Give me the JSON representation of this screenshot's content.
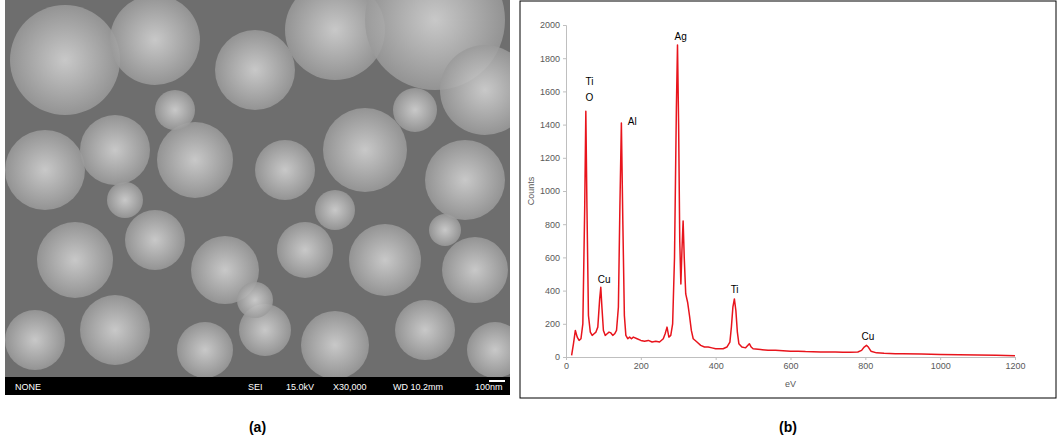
{
  "panel_labels": [
    "(a)",
    "(b)"
  ],
  "image": {
    "info_bar": [
      "NONE",
      "SEI",
      "15.0kV",
      "X30,000",
      "WD 10.2mm",
      "100nm"
    ]
  },
  "chart_data": {
    "type": "line",
    "x_label": "eV",
    "y_label": "Counts",
    "color": "#e8141c",
    "grid": false,
    "xlim": [
      0,
      1200
    ],
    "xticks": [
      0,
      200,
      400,
      600,
      800,
      1000,
      1200
    ],
    "ylim": [
      0,
      2000
    ],
    "yticks": [
      0,
      200,
      400,
      600,
      800,
      1000,
      1200,
      1400,
      1600,
      1800,
      2000
    ],
    "x": [
      15,
      20,
      25,
      30,
      35,
      40,
      45,
      50,
      53,
      56,
      60,
      65,
      70,
      75,
      80,
      85,
      90,
      93,
      96,
      100,
      105,
      110,
      115,
      120,
      125,
      130,
      135,
      140,
      144,
      148,
      152,
      156,
      160,
      165,
      170,
      175,
      180,
      190,
      200,
      210,
      220,
      230,
      240,
      250,
      260,
      265,
      270,
      275,
      280,
      285,
      290,
      295,
      298,
      301,
      304,
      307,
      310,
      313,
      316,
      320,
      325,
      330,
      335,
      340,
      350,
      360,
      370,
      380,
      390,
      400,
      410,
      420,
      430,
      438,
      442,
      446,
      450,
      454,
      458,
      462,
      470,
      480,
      490,
      495,
      500,
      520,
      540,
      560,
      580,
      600,
      620,
      640,
      660,
      680,
      700,
      720,
      740,
      760,
      780,
      790,
      797,
      803,
      808,
      815,
      830,
      850,
      880,
      900,
      950,
      1000,
      1050,
      1100,
      1150,
      1200
    ],
    "values": [
      10,
      80,
      160,
      120,
      100,
      110,
      200,
      900,
      1480,
      900,
      250,
      150,
      130,
      140,
      150,
      180,
      350,
      420,
      300,
      160,
      130,
      140,
      150,
      145,
      130,
      140,
      160,
      300,
      900,
      1410,
      800,
      250,
      130,
      110,
      120,
      110,
      120,
      110,
      100,
      95,
      100,
      90,
      95,
      90,
      110,
      140,
      180,
      120,
      130,
      200,
      600,
      1500,
      1880,
      1400,
      700,
      440,
      650,
      820,
      600,
      380,
      330,
      250,
      160,
      110,
      90,
      70,
      60,
      60,
      55,
      50,
      50,
      50,
      60,
      90,
      180,
      300,
      350,
      280,
      150,
      80,
      60,
      55,
      80,
      60,
      50,
      45,
      40,
      40,
      38,
      35,
      35,
      33,
      32,
      30,
      30,
      30,
      28,
      28,
      30,
      40,
      60,
      70,
      60,
      35,
      25,
      22,
      20,
      20,
      18,
      15,
      13,
      12,
      10,
      8
    ],
    "annotations": [
      {
        "text": "Ti",
        "x": 52,
        "y": 1640
      },
      {
        "text": "O",
        "x": 52,
        "y": 1545
      },
      {
        "text": "Cu",
        "x": 85,
        "y": 445
      },
      {
        "text": "Al",
        "x": 165,
        "y": 1400
      },
      {
        "text": "Ag",
        "x": 290,
        "y": 1910
      },
      {
        "text": "Ti",
        "x": 440,
        "y": 385
      },
      {
        "text": "Cu",
        "x": 790,
        "y": 105
      }
    ]
  }
}
